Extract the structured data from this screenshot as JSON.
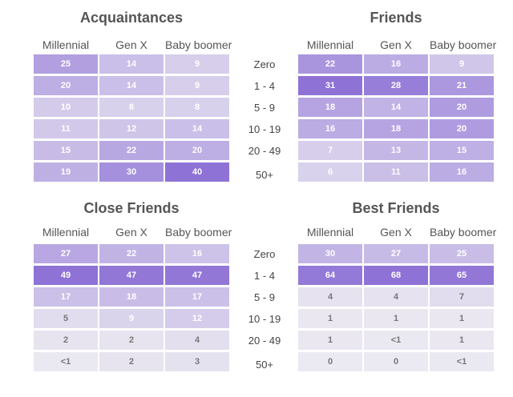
{
  "row_labels": [
    "Zero",
    "1 - 4",
    "5 - 9",
    "10 - 19",
    "20 - 49",
    "50+"
  ],
  "colors": {
    "text_dark": "#555555",
    "cell_text_light": "#ffffff",
    "cell_text_muted": "#777777",
    "scale_low": "#ebe9f1",
    "scale_high": "#8e72d6"
  },
  "chart_data": [
    {
      "type": "heatmap",
      "title": "Acquaintances",
      "columns": [
        "Millennial",
        "Gen X",
        "Baby boomer"
      ],
      "rows": [
        "Zero",
        "1 - 4",
        "5 - 9",
        "10 - 19",
        "20 - 49",
        "50+"
      ],
      "values": [
        [
          "25",
          "14",
          "9"
        ],
        [
          "20",
          "14",
          "9"
        ],
        [
          "10",
          "8",
          "8"
        ],
        [
          "11",
          "12",
          "14"
        ],
        [
          "15",
          "22",
          "20"
        ],
        [
          "19",
          "30",
          "40"
        ]
      ],
      "numeric": [
        [
          25,
          14,
          9
        ],
        [
          20,
          14,
          9
        ],
        [
          10,
          8,
          8
        ],
        [
          11,
          12,
          14
        ],
        [
          15,
          22,
          20
        ],
        [
          19,
          30,
          40
        ]
      ]
    },
    {
      "type": "heatmap",
      "title": "Friends",
      "columns": [
        "Millennial",
        "Gen X",
        "Baby boomer"
      ],
      "rows": [
        "Zero",
        "1 - 4",
        "5 - 9",
        "10 - 19",
        "20 - 49",
        "50+"
      ],
      "values": [
        [
          "22",
          "16",
          "9"
        ],
        [
          "31",
          "28",
          "21"
        ],
        [
          "18",
          "14",
          "20"
        ],
        [
          "16",
          "18",
          "20"
        ],
        [
          "7",
          "13",
          "15"
        ],
        [
          "6",
          "11",
          "16"
        ]
      ],
      "numeric": [
        [
          22,
          16,
          9
        ],
        [
          31,
          28,
          21
        ],
        [
          18,
          14,
          20
        ],
        [
          16,
          18,
          20
        ],
        [
          7,
          13,
          15
        ],
        [
          6,
          11,
          16
        ]
      ]
    },
    {
      "type": "heatmap",
      "title": "Close Friends",
      "columns": [
        "Millennial",
        "Gen X",
        "Baby boomer"
      ],
      "rows": [
        "Zero",
        "1 - 4",
        "5 - 9",
        "10 - 19",
        "20 - 49",
        "50+"
      ],
      "values": [
        [
          "27",
          "22",
          "16"
        ],
        [
          "49",
          "47",
          "47"
        ],
        [
          "17",
          "18",
          "17"
        ],
        [
          "5",
          "9",
          "12"
        ],
        [
          "2",
          "2",
          "4"
        ],
        [
          "<1",
          "2",
          "3"
        ]
      ],
      "numeric": [
        [
          27,
          22,
          16
        ],
        [
          49,
          47,
          47
        ],
        [
          17,
          18,
          17
        ],
        [
          5,
          9,
          12
        ],
        [
          2,
          2,
          4
        ],
        [
          0.5,
          2,
          3
        ]
      ]
    },
    {
      "type": "heatmap",
      "title": "Best Friends",
      "columns": [
        "Millennial",
        "Gen X",
        "Baby boomer"
      ],
      "rows": [
        "Zero",
        "1 - 4",
        "5 - 9",
        "10 - 19",
        "20 - 49",
        "50+"
      ],
      "values": [
        [
          "30",
          "27",
          "25"
        ],
        [
          "64",
          "68",
          "65"
        ],
        [
          "4",
          "4",
          "7"
        ],
        [
          "1",
          "1",
          "1"
        ],
        [
          "1",
          "<1",
          "1"
        ],
        [
          "0",
          "0",
          "<1"
        ]
      ],
      "numeric": [
        [
          30,
          27,
          25
        ],
        [
          64,
          68,
          65
        ],
        [
          4,
          4,
          7
        ],
        [
          1,
          1,
          1
        ],
        [
          1,
          0.5,
          1
        ],
        [
          0,
          0,
          0.5
        ]
      ]
    }
  ]
}
